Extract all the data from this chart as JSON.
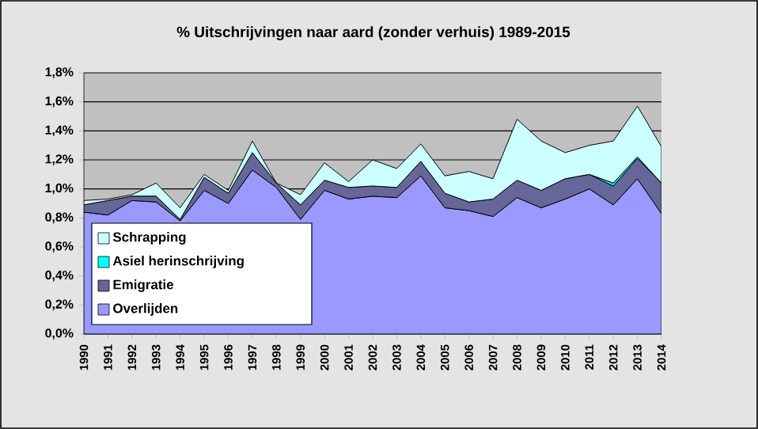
{
  "chart_data": {
    "type": "area",
    "stacked": true,
    "title": "% Uitschrijvingen naar aard (zonder verhuis) 1989-2015",
    "categories": [
      "1990",
      "1991",
      "1992",
      "1993",
      "1994",
      "1995",
      "1996",
      "1997",
      "1998",
      "1999",
      "2000",
      "2001",
      "2002",
      "2003",
      "2004",
      "2005",
      "2006",
      "2007",
      "2008",
      "2009",
      "2010",
      "2011",
      "2012",
      "2013",
      "2014"
    ],
    "series": [
      {
        "name": "Overlijden",
        "color": "#9999ff",
        "values": [
          0.84,
          0.82,
          0.92,
          0.91,
          0.78,
          0.99,
          0.9,
          1.13,
          1.01,
          0.79,
          0.99,
          0.93,
          0.95,
          0.94,
          1.09,
          0.87,
          0.85,
          0.81,
          0.94,
          0.87,
          0.93,
          1.0,
          0.89,
          1.07,
          0.83
        ]
      },
      {
        "name": "Emigratie",
        "color": "#666699",
        "values": [
          0.05,
          0.1,
          0.03,
          0.04,
          0.01,
          0.09,
          0.07,
          0.12,
          0.03,
          0.1,
          0.07,
          0.08,
          0.07,
          0.07,
          0.1,
          0.1,
          0.06,
          0.12,
          0.12,
          0.12,
          0.14,
          0.1,
          0.13,
          0.14,
          0.21
        ]
      },
      {
        "name": "Asiel herinschrijving",
        "color": "#00ffff",
        "values": [
          null,
          null,
          null,
          null,
          null,
          null,
          null,
          null,
          null,
          null,
          null,
          null,
          null,
          null,
          null,
          null,
          null,
          null,
          null,
          null,
          null,
          0,
          0.02,
          0.01,
          0
        ]
      },
      {
        "name": "Schrapping",
        "color": "#ccffff",
        "values": [
          0.03,
          0.01,
          0.01,
          0.09,
          0.08,
          0.02,
          0.02,
          0.08,
          0.0,
          0.07,
          0.12,
          0.04,
          0.18,
          0.13,
          0.12,
          0.12,
          0.21,
          0.14,
          0.42,
          0.34,
          0.18,
          0.2,
          0.29,
          0.35,
          0.25
        ]
      }
    ],
    "ylim": [
      0,
      1.8
    ],
    "yticks": [
      {
        "value": 0,
        "label": "0,0%"
      },
      {
        "value": 0.2,
        "label": "0,2%"
      },
      {
        "value": 0.4,
        "label": "0,4%"
      },
      {
        "value": 0.6,
        "label": "0,6%"
      },
      {
        "value": 0.8,
        "label": "0,8%"
      },
      {
        "value": 1.0,
        "label": "1,0%"
      },
      {
        "value": 1.2,
        "label": "1,2%"
      },
      {
        "value": 1.4,
        "label": "1,4%"
      },
      {
        "value": 1.6,
        "label": "1,6%"
      },
      {
        "value": 1.8,
        "label": "1,8%"
      }
    ],
    "grid": "y",
    "legend": "bottom left"
  }
}
